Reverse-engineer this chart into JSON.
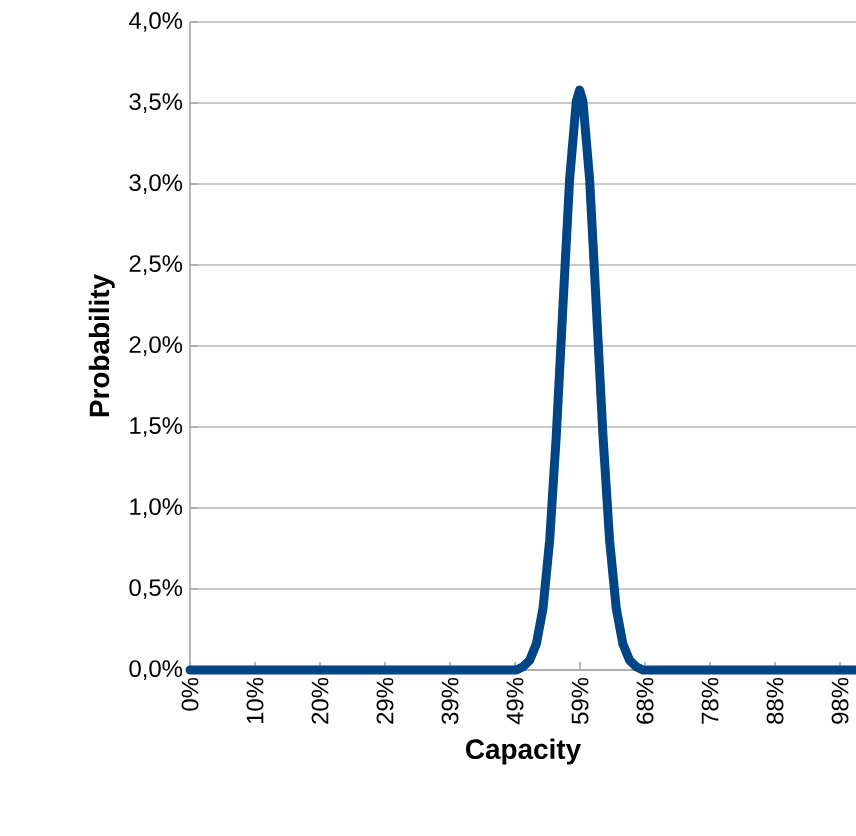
{
  "chart_data": {
    "type": "line",
    "xlabel": "Capacity",
    "ylabel": "Probability",
    "xlim": [
      0,
      100
    ],
    "ylim": [
      0,
      4
    ],
    "xticks": [
      {
        "value": 0,
        "label": "0%"
      },
      {
        "value": 9.76,
        "label": "10%"
      },
      {
        "value": 19.52,
        "label": "20%"
      },
      {
        "value": 29.28,
        "label": "29%"
      },
      {
        "value": 39.04,
        "label": "39%"
      },
      {
        "value": 48.8,
        "label": "49%"
      },
      {
        "value": 58.56,
        "label": "59%"
      },
      {
        "value": 68.32,
        "label": "68%"
      },
      {
        "value": 78.08,
        "label": "78%"
      },
      {
        "value": 87.84,
        "label": "88%"
      },
      {
        "value": 97.6,
        "label": "98%"
      }
    ],
    "yticks": [
      {
        "value": 0,
        "label": "0,0%"
      },
      {
        "value": 0.5,
        "label": "0,5%"
      },
      {
        "value": 1,
        "label": "1,0%"
      },
      {
        "value": 1.5,
        "label": "1,5%"
      },
      {
        "value": 2,
        "label": "2,0%"
      },
      {
        "value": 2.5,
        "label": "2,5%"
      },
      {
        "value": 3,
        "label": "3,0%"
      },
      {
        "value": 3.5,
        "label": "3,5%"
      },
      {
        "value": 4,
        "label": "4,0%"
      }
    ],
    "grid": "y",
    "marker": "none",
    "line_style": "solid",
    "series": [
      {
        "color": "#004586",
        "x": [
          0,
          49,
          50,
          51,
          52,
          53,
          54,
          55,
          56,
          57,
          58,
          58.5,
          59,
          60,
          61,
          62,
          63,
          64,
          65,
          66,
          67,
          68,
          100
        ],
        "values": [
          0,
          0,
          0.02,
          0.06,
          0.16,
          0.38,
          0.8,
          1.45,
          2.25,
          3.03,
          3.51,
          3.58,
          3.51,
          3.03,
          2.25,
          1.45,
          0.8,
          0.38,
          0.16,
          0.06,
          0.02,
          0,
          0
        ]
      }
    ]
  }
}
